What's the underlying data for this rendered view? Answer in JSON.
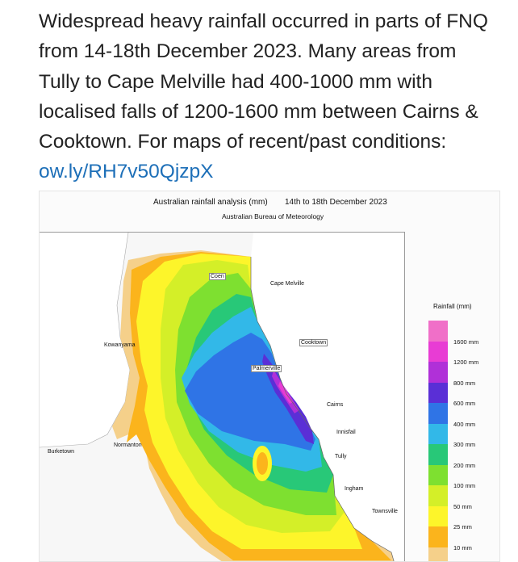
{
  "tweet": {
    "text": "Widespread heavy rainfall occurred in parts of FNQ from 14-18th December 2023. Many areas from Tully to Cape Melville had 400-1000 mm with localised falls of 1200-1600 mm between Cairns & Cooktown. For maps of recent/past conditions: ",
    "link": "ow.ly/RH7v50QjzpX"
  },
  "map": {
    "title": "Australian rainfall analysis (mm)",
    "period": "14th to 18th December 2023",
    "source": "Australian Bureau of Meteorology",
    "towns": {
      "coen": "Coen",
      "cape_melville": "Cape Melville",
      "kowanyama": "Kowanyama",
      "cooktown": "Cooktown",
      "palmerville": "Palmerville",
      "cairns": "Cairns",
      "innisfail": "Innisfail",
      "normanton": "Normanton",
      "burketown": "Burketown",
      "tully": "Tully",
      "ingham": "Ingham",
      "townsville": "Townsville"
    },
    "legend": {
      "title": "Rainfall (mm)",
      "items": [
        {
          "color": "#f06fc8",
          "label": ""
        },
        {
          "color": "#e83cd4",
          "label": "1600 mm"
        },
        {
          "color": "#b030d8",
          "label": "1200 mm"
        },
        {
          "color": "#5a2fd6",
          "label": "800 mm"
        },
        {
          "color": "#2f74e6",
          "label": "600 mm"
        },
        {
          "color": "#32b8e8",
          "label": "400 mm"
        },
        {
          "color": "#28c878",
          "label": "300 mm"
        },
        {
          "color": "#7ee030",
          "label": "200 mm"
        },
        {
          "color": "#d4ef28",
          "label": "100 mm"
        },
        {
          "color": "#fdf52a",
          "label": "50 mm"
        },
        {
          "color": "#fbb41c",
          "label": "25 mm"
        },
        {
          "color": "#f5d08a",
          "label": "10 mm"
        }
      ]
    }
  }
}
